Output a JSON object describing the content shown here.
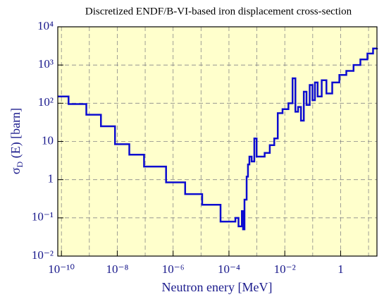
{
  "chart_data": {
    "type": "step-line",
    "title": "Discretized ENDF/B-VI-based iron displacement cross-section",
    "xlabel": "Neutron enery [MeV]",
    "ylabel": {
      "symbol": "σ",
      "subscript": "D",
      "rest": " (E) [barn]"
    },
    "xscale": "log",
    "yscale": "log",
    "grid": true,
    "background": "#ffffcc",
    "series": [
      {
        "color": "#0c0cd0",
        "x": [
          7.4e-11,
          1.8e-10,
          7.8e-10,
          2.6e-09,
          8.3e-09,
          2.7e-08,
          9.1e-08,
          5.6e-07,
          2.7e-06,
          1.1e-05,
          5e-05,
          0.00017,
          0.00022,
          0.00029,
          0.00032,
          0.00036,
          0.00043,
          0.00048,
          0.00054,
          0.00065,
          0.00081,
          0.00098,
          0.00115,
          0.0019,
          0.0029,
          0.0042,
          0.0056,
          0.0083,
          0.0135,
          0.019,
          0.024,
          0.03,
          0.038,
          0.048,
          0.06,
          0.078,
          0.098,
          0.12,
          0.15,
          0.21,
          0.31,
          0.5,
          0.9,
          1.6,
          2.9,
          5.1,
          9.1,
          14.5,
          20
        ],
        "values": [
          150,
          95,
          50,
          25,
          8.5,
          4.5,
          2.2,
          0.85,
          0.42,
          0.22,
          0.08,
          0.1,
          0.06,
          0.15,
          0.05,
          0.3,
          1.2,
          2.5,
          4,
          3,
          12,
          4,
          4,
          5,
          8,
          12,
          55,
          70,
          100,
          450,
          60,
          80,
          35,
          200,
          90,
          300,
          120,
          350,
          150,
          400,
          180,
          350,
          550,
          700,
          1000,
          1400,
          2000,
          2700,
          2800
        ]
      }
    ],
    "xlim": [
      7.4e-11,
      20
    ],
    "ylim": [
      0.01,
      10000
    ],
    "xticks": [
      {
        "value": 1e-10,
        "label": "10⁻¹⁰"
      },
      {
        "value": 1e-08,
        "label": "10⁻⁸"
      },
      {
        "value": 1e-06,
        "label": "10⁻⁶"
      },
      {
        "value": 0.0001,
        "label": "10⁻⁴"
      },
      {
        "value": 0.01,
        "label": "10⁻²"
      },
      1
    ],
    "xgrid": [
      1e-10,
      1e-09,
      1e-08,
      1e-07,
      1e-06,
      1e-05,
      0.0001,
      0.001,
      0.01,
      0.1,
      1,
      10
    ],
    "yticks": [
      {
        "value": 0.01,
        "label": "10⁻²"
      },
      {
        "value": 0.1,
        "label": "10⁻¹"
      },
      1,
      10,
      {
        "value": 100,
        "label": "10²"
      },
      {
        "value": 1000,
        "label": "10³"
      },
      {
        "value": 10000,
        "label": "10⁴"
      }
    ]
  }
}
